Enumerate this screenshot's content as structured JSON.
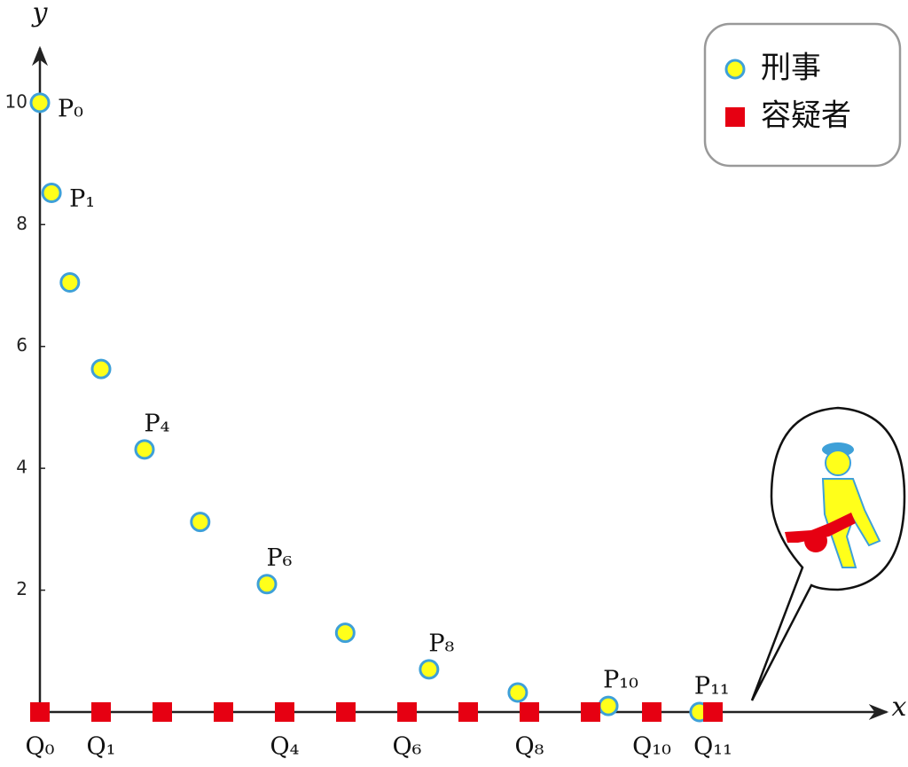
{
  "chart_data": {
    "type": "scatter",
    "x_label": "x",
    "y_label": "y",
    "xlim": [
      0,
      13.84
    ],
    "ylim": [
      0,
      10.9
    ],
    "yticks": [
      2,
      4,
      6,
      8,
      10
    ],
    "legend_position": "upper right",
    "series": [
      {
        "name": "刑事",
        "color": "#ffff1a",
        "edge_color": "#3ea0d8",
        "marker": "circle",
        "x": [
          0,
          0.19,
          0.49,
          1.0,
          1.71,
          2.62,
          3.71,
          4.99,
          6.36,
          7.81,
          9.29,
          10.78
        ],
        "values": [
          10,
          8.52,
          7.05,
          5.63,
          4.31,
          3.12,
          2.1,
          1.3,
          0.7,
          0.32,
          0.1,
          0.0
        ],
        "labels": [
          "P₀",
          "P₁",
          null,
          null,
          "P₄",
          null,
          "P₆",
          null,
          "P₈",
          null,
          "P₁₀",
          "P₁₁"
        ]
      },
      {
        "name": "容疑者",
        "color": "#e60012",
        "marker": "square",
        "x": [
          0,
          1,
          2,
          3,
          4,
          5,
          6,
          7,
          8,
          9,
          10,
          11
        ],
        "values": [
          0,
          0,
          0,
          0,
          0,
          0,
          0,
          0,
          0,
          0,
          0,
          0
        ],
        "labels": [
          "Q₀",
          "Q₁",
          null,
          null,
          "Q₄",
          null,
          "Q₆",
          null,
          "Q₈",
          null,
          "Q₁₀",
          "Q₁₁"
        ]
      }
    ]
  }
}
